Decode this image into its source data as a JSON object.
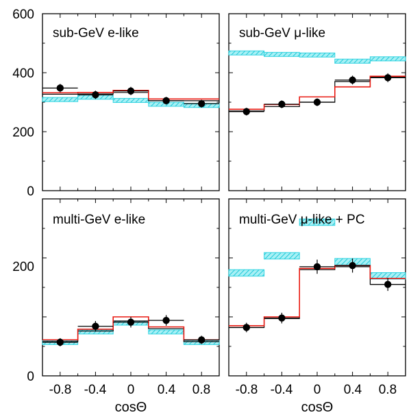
{
  "chart_data": [
    {
      "type": "step-histogram",
      "title": "sub-GeV e-like",
      "xlabel": "",
      "ylabel": "",
      "xlim": [
        -1,
        1
      ],
      "ylim": [
        0,
        600
      ],
      "y_ticks": [
        "0",
        "200",
        "400",
        "600"
      ],
      "bins": [
        [
          -1.0,
          -0.6
        ],
        [
          -0.6,
          -0.2
        ],
        [
          -0.2,
          0.2
        ],
        [
          0.2,
          0.6
        ],
        [
          0.6,
          1.0
        ]
      ],
      "null_oscillation_band": [
        [
          302,
          316
        ],
        [
          310,
          324
        ],
        [
          299,
          313
        ],
        [
          286,
          300
        ],
        [
          282,
          296
        ]
      ],
      "osc_best_fit_red": [
        332,
        333,
        340,
        311,
        311
      ],
      "osc_best_fit_black": [
        327,
        328,
        333,
        305,
        305
      ],
      "data": {
        "x": [
          -0.8,
          -0.4,
          0.0,
          0.4,
          0.8
        ],
        "y": [
          348,
          325,
          338,
          305,
          295
        ],
        "err": [
          14,
          14,
          14,
          13,
          13
        ]
      }
    },
    {
      "type": "step-histogram",
      "title": "sub-GeV μ-like",
      "xlabel": "",
      "ylabel": "",
      "xlim": [
        -1,
        1
      ],
      "ylim": [
        0,
        600
      ],
      "y_ticks": [],
      "bins": [
        [
          -1.0,
          -0.6
        ],
        [
          -0.6,
          -0.2
        ],
        [
          -0.2,
          0.2
        ],
        [
          0.2,
          0.6
        ],
        [
          0.6,
          1.0
        ]
      ],
      "null_oscillation_band": [
        [
          460,
          474
        ],
        [
          455,
          469
        ],
        [
          453,
          467
        ],
        [
          432,
          446
        ],
        [
          440,
          454
        ]
      ],
      "osc_best_fit_red": [
        276,
        292,
        318,
        352,
        388
      ],
      "osc_best_fit_black": [
        270,
        285,
        300,
        370,
        385
      ],
      "data": {
        "x": [
          -0.8,
          -0.4,
          0.0,
          0.4,
          0.8
        ],
        "y": [
          268,
          293,
          300,
          375,
          383
        ],
        "err": [
          13,
          13,
          13,
          15,
          15
        ]
      }
    },
    {
      "type": "step-histogram",
      "title": "multi-GeV e-like",
      "xlabel": "cosΘ",
      "ylabel": "",
      "xlim": [
        -1,
        1
      ],
      "ylim": [
        0,
        300
      ],
      "y_ticks": [
        "0",
        "200"
      ],
      "x_ticks": [
        "-0.8",
        "-0.4",
        "0",
        "0.4",
        "0.8"
      ],
      "bins": [
        [
          -1.0,
          -0.6
        ],
        [
          -0.6,
          -0.2
        ],
        [
          -0.2,
          0.2
        ],
        [
          0.2,
          0.6
        ],
        [
          0.6,
          1.0
        ]
      ],
      "null_oscillation_band": [
        [
          53,
          60
        ],
        [
          71,
          78
        ],
        [
          86,
          93
        ],
        [
          71,
          78
        ],
        [
          53,
          60
        ]
      ],
      "osc_best_fit_red": [
        61,
        79,
        100,
        83,
        61
      ],
      "osc_best_fit_black": [
        58,
        76,
        93,
        80,
        58
      ],
      "data": {
        "x": [
          -0.8,
          -0.4,
          0.0,
          0.4,
          0.8
        ],
        "y": [
          57,
          84,
          91,
          94,
          61
        ],
        "err": [
          7,
          9,
          9,
          9,
          7
        ]
      }
    },
    {
      "type": "step-histogram",
      "title": "multi-GeV μ-like + PC",
      "xlabel": "cosΘ",
      "ylabel": "",
      "xlim": [
        -1,
        1
      ],
      "ylim": [
        0,
        300
      ],
      "y_ticks": [],
      "x_ticks": [
        "-0.8",
        "-0.4",
        "0",
        "0.4",
        "0.8"
      ],
      "bins": [
        [
          -1.0,
          -0.6
        ],
        [
          -0.6,
          -0.2
        ],
        [
          -0.2,
          0.2
        ],
        [
          0.2,
          0.6
        ],
        [
          0.6,
          1.0
        ]
      ],
      "null_oscillation_band": [
        [
          169,
          180
        ],
        [
          198,
          209
        ],
        [
          255,
          266
        ],
        [
          188,
          199
        ],
        [
          164,
          175
        ]
      ],
      "osc_best_fit_red": [
        85,
        100,
        182,
        187,
        165
      ],
      "osc_best_fit_black": [
        82,
        97,
        180,
        185,
        155
      ],
      "data": {
        "x": [
          -0.8,
          -0.4,
          0.0,
          0.4,
          0.8
        ],
        "y": [
          82,
          98,
          185,
          187,
          155
        ],
        "err": [
          8,
          9,
          12,
          12,
          11
        ]
      }
    }
  ]
}
